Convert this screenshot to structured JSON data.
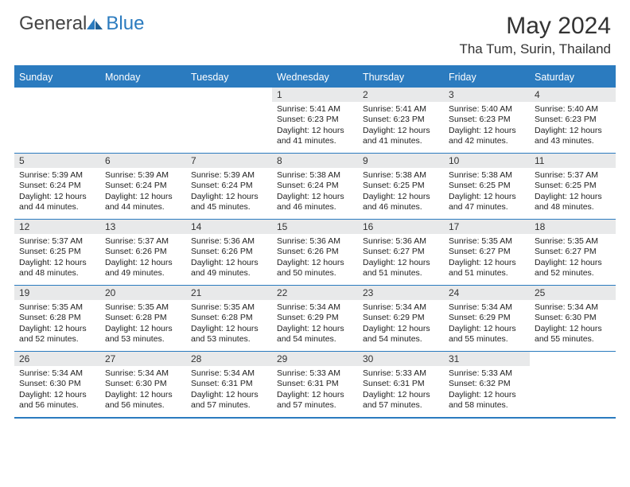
{
  "brand": {
    "general": "General",
    "blue": "Blue"
  },
  "title": "May 2024",
  "location": "Tha Tum, Surin, Thailand",
  "colors": {
    "header_bar": "#2b7bbf",
    "daynum_bg": "#e8e9ea",
    "text": "#222222",
    "background": "#ffffff"
  },
  "day_headers": [
    "Sunday",
    "Monday",
    "Tuesday",
    "Wednesday",
    "Thursday",
    "Friday",
    "Saturday"
  ],
  "weeks": [
    [
      {
        "empty": true
      },
      {
        "empty": true
      },
      {
        "empty": true
      },
      {
        "num": "1",
        "sunrise": "Sunrise: 5:41 AM",
        "sunset": "Sunset: 6:23 PM",
        "day1": "Daylight: 12 hours",
        "day2": "and 41 minutes."
      },
      {
        "num": "2",
        "sunrise": "Sunrise: 5:41 AM",
        "sunset": "Sunset: 6:23 PM",
        "day1": "Daylight: 12 hours",
        "day2": "and 41 minutes."
      },
      {
        "num": "3",
        "sunrise": "Sunrise: 5:40 AM",
        "sunset": "Sunset: 6:23 PM",
        "day1": "Daylight: 12 hours",
        "day2": "and 42 minutes."
      },
      {
        "num": "4",
        "sunrise": "Sunrise: 5:40 AM",
        "sunset": "Sunset: 6:23 PM",
        "day1": "Daylight: 12 hours",
        "day2": "and 43 minutes."
      }
    ],
    [
      {
        "num": "5",
        "sunrise": "Sunrise: 5:39 AM",
        "sunset": "Sunset: 6:24 PM",
        "day1": "Daylight: 12 hours",
        "day2": "and 44 minutes."
      },
      {
        "num": "6",
        "sunrise": "Sunrise: 5:39 AM",
        "sunset": "Sunset: 6:24 PM",
        "day1": "Daylight: 12 hours",
        "day2": "and 44 minutes."
      },
      {
        "num": "7",
        "sunrise": "Sunrise: 5:39 AM",
        "sunset": "Sunset: 6:24 PM",
        "day1": "Daylight: 12 hours",
        "day2": "and 45 minutes."
      },
      {
        "num": "8",
        "sunrise": "Sunrise: 5:38 AM",
        "sunset": "Sunset: 6:24 PM",
        "day1": "Daylight: 12 hours",
        "day2": "and 46 minutes."
      },
      {
        "num": "9",
        "sunrise": "Sunrise: 5:38 AM",
        "sunset": "Sunset: 6:25 PM",
        "day1": "Daylight: 12 hours",
        "day2": "and 46 minutes."
      },
      {
        "num": "10",
        "sunrise": "Sunrise: 5:38 AM",
        "sunset": "Sunset: 6:25 PM",
        "day1": "Daylight: 12 hours",
        "day2": "and 47 minutes."
      },
      {
        "num": "11",
        "sunrise": "Sunrise: 5:37 AM",
        "sunset": "Sunset: 6:25 PM",
        "day1": "Daylight: 12 hours",
        "day2": "and 48 minutes."
      }
    ],
    [
      {
        "num": "12",
        "sunrise": "Sunrise: 5:37 AM",
        "sunset": "Sunset: 6:25 PM",
        "day1": "Daylight: 12 hours",
        "day2": "and 48 minutes."
      },
      {
        "num": "13",
        "sunrise": "Sunrise: 5:37 AM",
        "sunset": "Sunset: 6:26 PM",
        "day1": "Daylight: 12 hours",
        "day2": "and 49 minutes."
      },
      {
        "num": "14",
        "sunrise": "Sunrise: 5:36 AM",
        "sunset": "Sunset: 6:26 PM",
        "day1": "Daylight: 12 hours",
        "day2": "and 49 minutes."
      },
      {
        "num": "15",
        "sunrise": "Sunrise: 5:36 AM",
        "sunset": "Sunset: 6:26 PM",
        "day1": "Daylight: 12 hours",
        "day2": "and 50 minutes."
      },
      {
        "num": "16",
        "sunrise": "Sunrise: 5:36 AM",
        "sunset": "Sunset: 6:27 PM",
        "day1": "Daylight: 12 hours",
        "day2": "and 51 minutes."
      },
      {
        "num": "17",
        "sunrise": "Sunrise: 5:35 AM",
        "sunset": "Sunset: 6:27 PM",
        "day1": "Daylight: 12 hours",
        "day2": "and 51 minutes."
      },
      {
        "num": "18",
        "sunrise": "Sunrise: 5:35 AM",
        "sunset": "Sunset: 6:27 PM",
        "day1": "Daylight: 12 hours",
        "day2": "and 52 minutes."
      }
    ],
    [
      {
        "num": "19",
        "sunrise": "Sunrise: 5:35 AM",
        "sunset": "Sunset: 6:28 PM",
        "day1": "Daylight: 12 hours",
        "day2": "and 52 minutes."
      },
      {
        "num": "20",
        "sunrise": "Sunrise: 5:35 AM",
        "sunset": "Sunset: 6:28 PM",
        "day1": "Daylight: 12 hours",
        "day2": "and 53 minutes."
      },
      {
        "num": "21",
        "sunrise": "Sunrise: 5:35 AM",
        "sunset": "Sunset: 6:28 PM",
        "day1": "Daylight: 12 hours",
        "day2": "and 53 minutes."
      },
      {
        "num": "22",
        "sunrise": "Sunrise: 5:34 AM",
        "sunset": "Sunset: 6:29 PM",
        "day1": "Daylight: 12 hours",
        "day2": "and 54 minutes."
      },
      {
        "num": "23",
        "sunrise": "Sunrise: 5:34 AM",
        "sunset": "Sunset: 6:29 PM",
        "day1": "Daylight: 12 hours",
        "day2": "and 54 minutes."
      },
      {
        "num": "24",
        "sunrise": "Sunrise: 5:34 AM",
        "sunset": "Sunset: 6:29 PM",
        "day1": "Daylight: 12 hours",
        "day2": "and 55 minutes."
      },
      {
        "num": "25",
        "sunrise": "Sunrise: 5:34 AM",
        "sunset": "Sunset: 6:30 PM",
        "day1": "Daylight: 12 hours",
        "day2": "and 55 minutes."
      }
    ],
    [
      {
        "num": "26",
        "sunrise": "Sunrise: 5:34 AM",
        "sunset": "Sunset: 6:30 PM",
        "day1": "Daylight: 12 hours",
        "day2": "and 56 minutes."
      },
      {
        "num": "27",
        "sunrise": "Sunrise: 5:34 AM",
        "sunset": "Sunset: 6:30 PM",
        "day1": "Daylight: 12 hours",
        "day2": "and 56 minutes."
      },
      {
        "num": "28",
        "sunrise": "Sunrise: 5:34 AM",
        "sunset": "Sunset: 6:31 PM",
        "day1": "Daylight: 12 hours",
        "day2": "and 57 minutes."
      },
      {
        "num": "29",
        "sunrise": "Sunrise: 5:33 AM",
        "sunset": "Sunset: 6:31 PM",
        "day1": "Daylight: 12 hours",
        "day2": "and 57 minutes."
      },
      {
        "num": "30",
        "sunrise": "Sunrise: 5:33 AM",
        "sunset": "Sunset: 6:31 PM",
        "day1": "Daylight: 12 hours",
        "day2": "and 57 minutes."
      },
      {
        "num": "31",
        "sunrise": "Sunrise: 5:33 AM",
        "sunset": "Sunset: 6:32 PM",
        "day1": "Daylight: 12 hours",
        "day2": "and 58 minutes."
      },
      {
        "empty": true
      }
    ]
  ]
}
